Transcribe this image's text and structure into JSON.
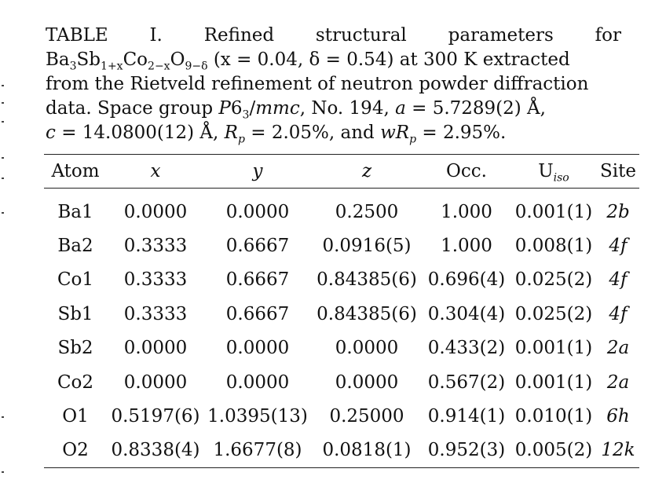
{
  "caption": {
    "label": "TABLE I.",
    "line1_text": "Refined structural parameters for",
    "formula": "Ba3Sb1+xCo2−xO9−δ",
    "line2_text": "(x = 0.04, δ = 0.54) at 300 K extracted",
    "line3_text": "from the Rietveld refinement of neutron powder diffraction",
    "line4_text": "data. Space group P63/mmc, No. 194, a = 5.7289(2) Å,",
    "line5_text": "c = 14.0800(12) Å, Rp = 2.05%, and wRp = 2.95%."
  },
  "table": {
    "headers": [
      "Atom",
      "x",
      "y",
      "z",
      "Occ.",
      "Uiso",
      "Site"
    ],
    "rows": [
      [
        "Ba1",
        "0.0000",
        "0.0000",
        "0.2500",
        "1.000",
        "0.001(1)",
        "2b"
      ],
      [
        "Ba2",
        "0.3333",
        "0.6667",
        "0.0916(5)",
        "1.000",
        "0.008(1)",
        "4f"
      ],
      [
        "Co1",
        "0.3333",
        "0.6667",
        "0.84385(6)",
        "0.696(4)",
        "0.025(2)",
        "4f"
      ],
      [
        "Sb1",
        "0.3333",
        "0.6667",
        "0.84385(6)",
        "0.304(4)",
        "0.025(2)",
        "4f"
      ],
      [
        "Sb2",
        "0.0000",
        "0.0000",
        "0.0000",
        "0.433(2)",
        "0.001(1)",
        "2a"
      ],
      [
        "Co2",
        "0.0000",
        "0.0000",
        "0.0000",
        "0.567(2)",
        "0.001(1)",
        "2a"
      ],
      [
        "O1",
        "0.5197(6)",
        "1.0395(13)",
        "0.25000",
        "0.914(1)",
        "0.010(1)",
        "6h"
      ],
      [
        "O2",
        "0.8338(4)",
        "1.6677(8)",
        "0.0818(1)",
        "0.952(3)",
        "0.005(2)",
        "12k"
      ]
    ]
  }
}
